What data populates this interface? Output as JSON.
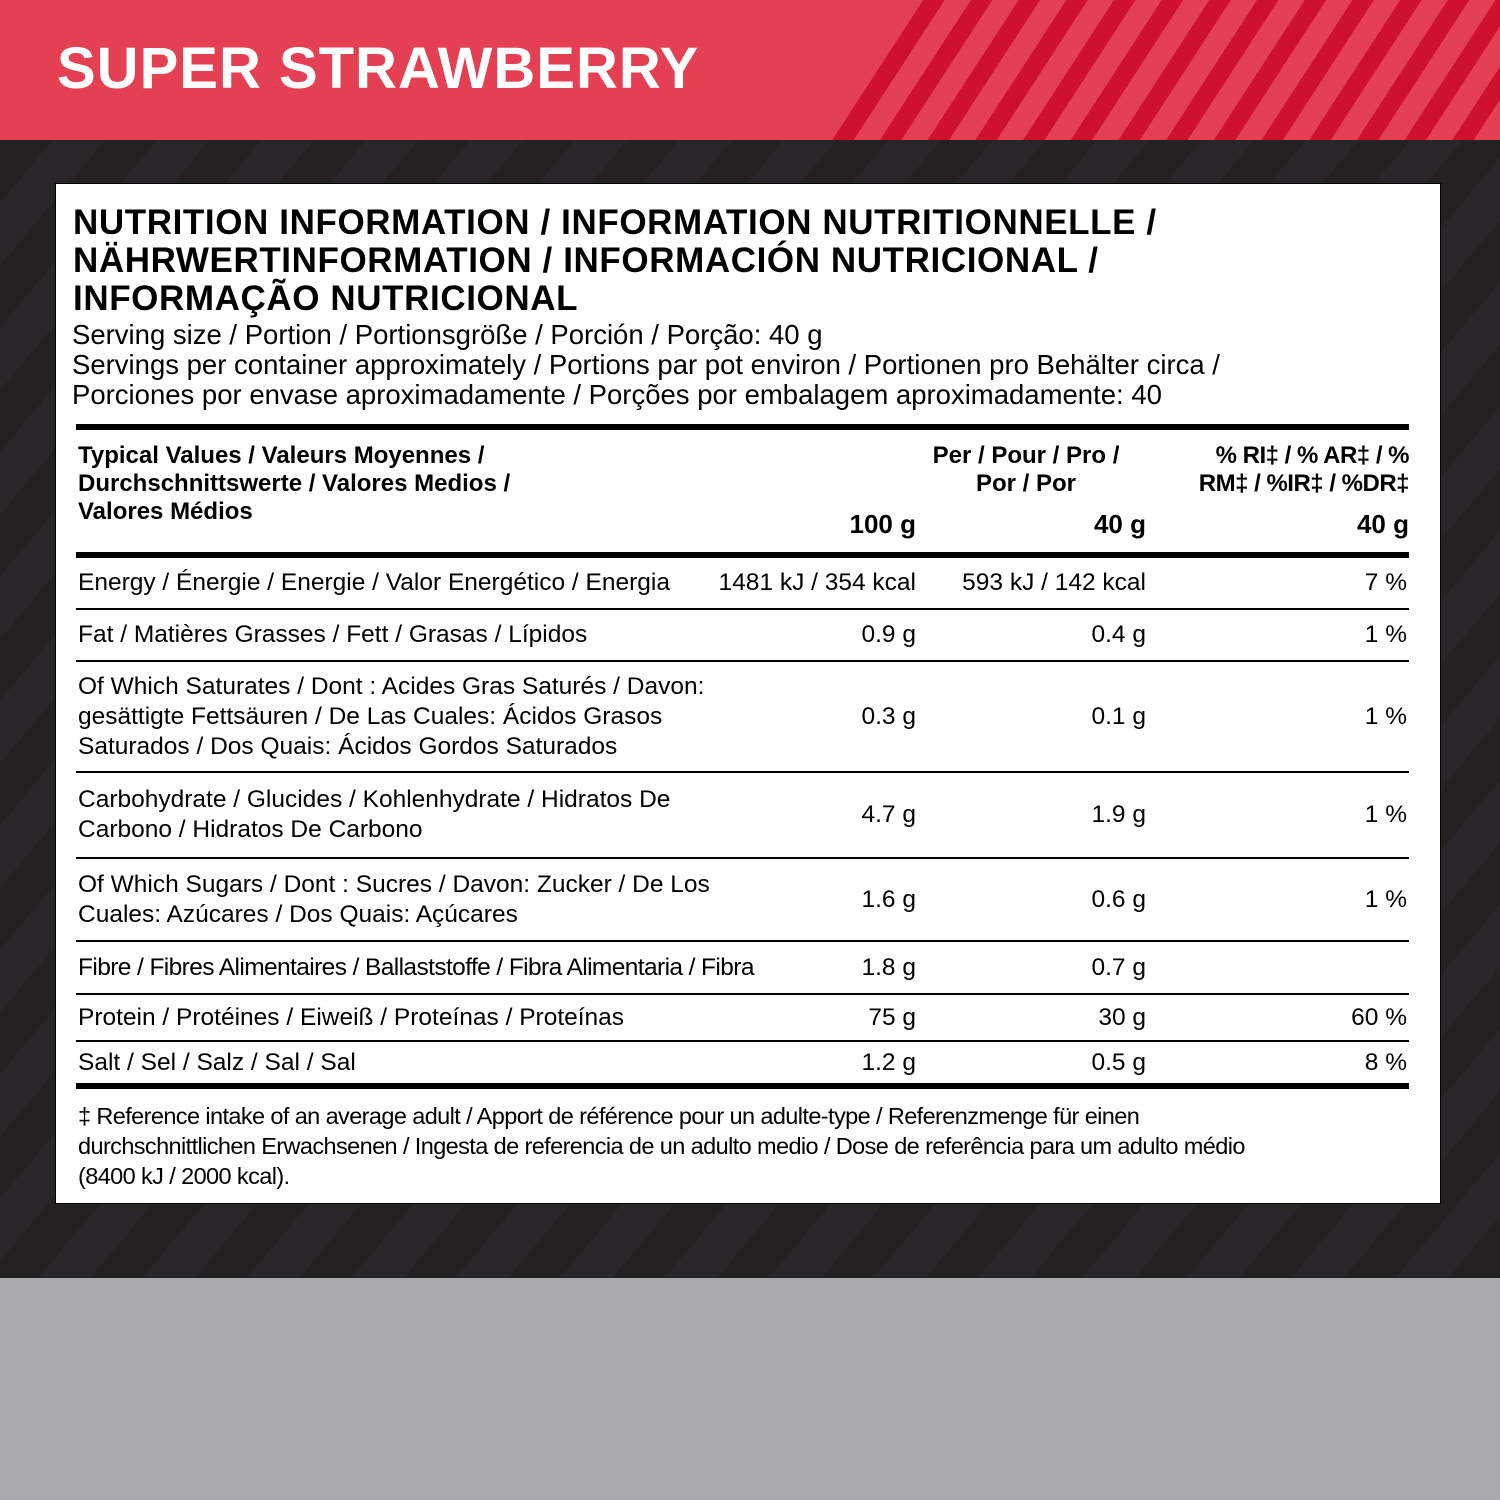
{
  "header": {
    "title": "SUPER STRAWBERRY",
    "colors": {
      "red": "#e43f52",
      "stripe": "#cf1130",
      "dark": "#232122",
      "gray": "#a7a8ab"
    }
  },
  "label": {
    "heading_lines": [
      "NUTRITION INFORMATION / INFORMATION NUTRITIONNELLE /",
      "NÄHRWERTINFORMATION / INFORMACIÓN NUTRICIONAL /",
      "INFORMAÇÃO NUTRICIONAL"
    ],
    "serving_lines": [
      "Serving size / Portion / Portionsgröße / Porción / Porção: 40 g",
      "Servings per container approximately / Portions par pot environ / Portionen pro Behälter circa /",
      "Porciones por envase aproximadamente / Porções por embalagem aproximadamente: 40"
    ],
    "table_header": {
      "typical": [
        "Typical Values / Valeurs Moyennes /",
        "Durchschnittswerte / Valores Medios /",
        "Valores Médios"
      ],
      "per": [
        "Per / Pour / Pro /",
        "Por / Por"
      ],
      "ri": [
        "% RI‡ / % AR‡ / %",
        "RM‡ / %IR‡ / %DR‡"
      ],
      "unit_100": "100 g",
      "unit_40": "40 g",
      "unit_ri": "40 g"
    },
    "rows": [
      {
        "name": [
          "Energy / Énergie / Energie / Valor Energético / Energia"
        ],
        "per100": "1481 kJ / 354 kcal",
        "per40": "593 kJ / 142 kcal",
        "ri": "7 %"
      },
      {
        "name": [
          "Fat / Matières Grasses / Fett / Grasas / Lípidos"
        ],
        "per100": "0.9 g",
        "per40": "0.4 g",
        "ri": "1 %"
      },
      {
        "name": [
          "Of Which Saturates / Dont : Acides Gras Saturés / Davon:",
          "gesättigte Fettsäuren / De Las Cuales: Ácidos Grasos",
          "Saturados / Dos Quais: Ácidos Gordos Saturados"
        ],
        "per100": "0.3 g",
        "per40": "0.1 g",
        "ri": "1 %"
      },
      {
        "name": [
          "Carbohydrate / Glucides / Kohlenhydrate / Hidratos De",
          "Carbono / Hidratos De Carbono"
        ],
        "per100": "4.7 g",
        "per40": "1.9 g",
        "ri": "1 %"
      },
      {
        "name": [
          "Of Which Sugars / Dont : Sucres / Davon: Zucker / De Los",
          "Cuales: Azúcares / Dos Quais: Açúcares"
        ],
        "per100": "1.6 g",
        "per40": "0.6 g",
        "ri": "1 %"
      },
      {
        "name": [
          "Fibre / Fibres Alimentaires / Ballaststoffe / Fibra Alimentaria / Fibra"
        ],
        "per100": "1.8 g",
        "per40": "0.7 g",
        "ri": ""
      },
      {
        "name": [
          "Protein / Protéines / Eiweiß / Proteínas / Proteínas"
        ],
        "per100": "75 g",
        "per40": "30 g",
        "ri": "60 %"
      },
      {
        "name": [
          "Salt / Sel / Salz / Sal / Sal"
        ],
        "per100": "1.2 g",
        "per40": "0.5 g",
        "ri": "8 %"
      }
    ],
    "footnote_lines": [
      "‡ Reference intake of an average adult / Apport de référence pour un adulte-type / Referenzmenge für einen",
      "durchschnittlichen Erwachsenen /  Ingesta de referencia de un adulto medio / Dose de referência para um adulto médio",
      "(8400 kJ / 2000 kcal)."
    ]
  }
}
